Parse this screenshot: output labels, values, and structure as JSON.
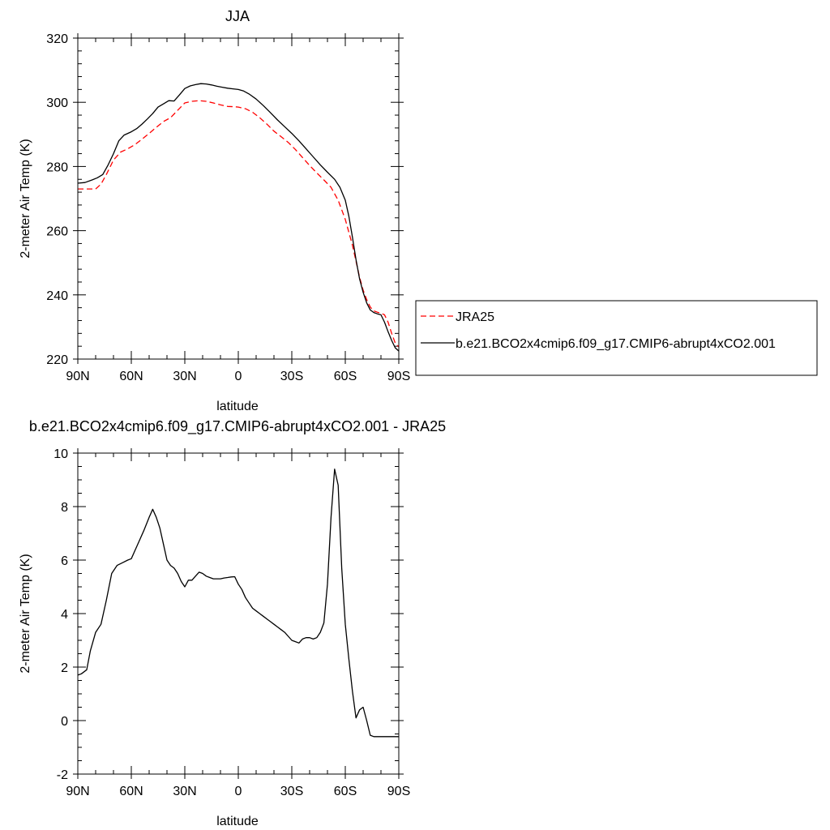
{
  "chart_data": [
    {
      "type": "line",
      "title": "JJA",
      "xlabel": "latitude",
      "ylabel": "2-meter Air Temp (K)",
      "xlim": [
        90,
        -90
      ],
      "ylim": [
        220,
        320
      ],
      "x_ticks": [
        90,
        60,
        30,
        0,
        -30,
        -60,
        -90
      ],
      "x_tick_labels": [
        "90N",
        "60N",
        "30N",
        "0",
        "30S",
        "60S",
        "90S"
      ],
      "y_ticks": [
        220,
        240,
        260,
        280,
        300,
        320
      ],
      "y_tick_labels": [
        "220",
        "240",
        "260",
        "280",
        "300",
        "320"
      ],
      "legend": {
        "placement": "right",
        "entries": [
          "JRA25",
          "b.e21.BCO2x4cmip6.f09_g17.CMIP6-abrupt4xCO2.001"
        ]
      },
      "series": [
        {
          "name": "JRA25",
          "color": "#ff0000",
          "dash": "dashed",
          "x": [
            90,
            85,
            80,
            77,
            74,
            70,
            66,
            62,
            58,
            54,
            50,
            46,
            42,
            38,
            34,
            30,
            26,
            22,
            18,
            14,
            10,
            6,
            2,
            0,
            -4,
            -8,
            -12,
            -16,
            -20,
            -24,
            -28,
            -32,
            -36,
            -40,
            -44,
            -48,
            -52,
            -56,
            -60,
            -62,
            -64,
            -66,
            -68,
            -70,
            -72,
            -74,
            -76,
            -78,
            -80,
            -82,
            -84,
            -86,
            -88,
            -90
          ],
          "values": [
            273,
            273,
            273,
            274.5,
            277.5,
            282,
            284.5,
            285.5,
            286.8,
            288.5,
            290.3,
            292.2,
            294,
            295.2,
            297.5,
            299.8,
            300.3,
            300.5,
            300.3,
            299.8,
            299.2,
            298.7,
            298.6,
            298.5,
            298,
            296.9,
            295.2,
            293.2,
            291,
            289.3,
            287.5,
            285.3,
            282.8,
            280.3,
            278,
            275.8,
            273.5,
            269.5,
            263.5,
            259.5,
            255.5,
            250.5,
            245.5,
            241.5,
            238.5,
            236.2,
            235,
            234.6,
            234.3,
            233.8,
            231.5,
            228,
            225,
            223.8
          ]
        },
        {
          "name": "b.e21.BCO2x4cmip6.f09_g17.CMIP6-abrupt4xCO2.001",
          "color": "#000000",
          "dash": "solid",
          "x": [
            90,
            86,
            82,
            79,
            76,
            73,
            70,
            67,
            64,
            60,
            57,
            54,
            51,
            48,
            45,
            42,
            39,
            36,
            33,
            30,
            27,
            24,
            21,
            18,
            15,
            12,
            9,
            6,
            3,
            0,
            -3,
            -6,
            -10,
            -14,
            -18,
            -22,
            -26,
            -30,
            -34,
            -38,
            -42,
            -46,
            -50,
            -54,
            -57,
            -60,
            -62,
            -64,
            -66,
            -68,
            -70,
            -72,
            -74,
            -76,
            -78,
            -80,
            -82,
            -84,
            -86,
            -88,
            -90
          ],
          "values": [
            274.8,
            275,
            275.8,
            276.5,
            277.5,
            280.5,
            284,
            288,
            289.8,
            290.8,
            291.8,
            293.2,
            294.8,
            296.5,
            298.5,
            299.5,
            300.5,
            300.4,
            302.3,
            304.3,
            305.1,
            305.5,
            305.8,
            305.7,
            305.4,
            305,
            304.7,
            304.4,
            304.2,
            304,
            303.5,
            302.6,
            301,
            299,
            296.8,
            294.5,
            292.4,
            290.3,
            288,
            285.5,
            283,
            280.5,
            278.2,
            276,
            273.5,
            269.5,
            264.5,
            258,
            251,
            245,
            240.8,
            237.5,
            235.3,
            234.5,
            234.1,
            233.8,
            231.5,
            228.5,
            225.8,
            223.5,
            222.5
          ]
        }
      ]
    },
    {
      "type": "line",
      "title": "b.e21.BCO2x4cmip6.f09_g17.CMIP6-abrupt4xCO2.001 - JRA25",
      "xlabel": "latitude",
      "ylabel": "2-meter Air Temp (K)",
      "xlim": [
        90,
        -90
      ],
      "ylim": [
        -2,
        10
      ],
      "x_ticks": [
        90,
        60,
        30,
        0,
        -30,
        -60,
        -90
      ],
      "x_tick_labels": [
        "90N",
        "60N",
        "30N",
        "0",
        "30S",
        "60S",
        "90S"
      ],
      "y_ticks": [
        -2,
        0,
        2,
        4,
        6,
        8,
        10
      ],
      "y_tick_labels": [
        "-2",
        "0",
        "2",
        "4",
        "6",
        "8",
        "10"
      ],
      "series": [
        {
          "color": "#000000",
          "dash": "solid",
          "x": [
            90,
            88,
            85,
            83,
            80,
            77,
            74,
            71,
            68,
            65,
            62,
            60,
            57,
            55,
            53,
            50,
            48,
            46,
            44,
            42,
            40,
            38,
            36,
            34,
            32,
            30,
            28,
            26,
            24,
            22,
            20,
            18,
            16,
            14,
            12,
            10,
            8,
            6,
            4,
            2,
            0,
            -2,
            -4,
            -6,
            -8,
            -10,
            -12,
            -14,
            -16,
            -18,
            -20,
            -22,
            -24,
            -26,
            -28,
            -30,
            -32,
            -34,
            -36,
            -38,
            -40,
            -42,
            -44,
            -46,
            -48,
            -50,
            -52,
            -54,
            -56,
            -58,
            -60,
            -62,
            -64,
            -66,
            -68,
            -70,
            -72,
            -74,
            -76,
            -78,
            -80,
            -82,
            -84,
            -86,
            -88,
            -90
          ],
          "values": [
            1.7,
            1.75,
            1.9,
            2.6,
            3.3,
            3.6,
            4.5,
            5.5,
            5.8,
            5.9,
            6.0,
            6.05,
            6.5,
            6.8,
            7.1,
            7.6,
            7.9,
            7.6,
            7.2,
            6.6,
            6.0,
            5.8,
            5.7,
            5.5,
            5.2,
            5.0,
            5.25,
            5.25,
            5.4,
            5.55,
            5.5,
            5.4,
            5.35,
            5.3,
            5.3,
            5.3,
            5.33,
            5.35,
            5.37,
            5.38,
            5.1,
            4.9,
            4.6,
            4.4,
            4.2,
            4.1,
            4.0,
            3.9,
            3.8,
            3.7,
            3.6,
            3.5,
            3.4,
            3.3,
            3.15,
            3.0,
            2.95,
            2.9,
            3.05,
            3.1,
            3.1,
            3.05,
            3.1,
            3.3,
            3.65,
            5.1,
            7.6,
            9.4,
            8.8,
            5.7,
            3.6,
            2.3,
            1.1,
            0.1,
            0.4,
            0.5,
            0.0,
            -0.55,
            -0.6,
            -0.6,
            -0.6,
            -0.6,
            -0.6,
            -0.6,
            -0.6,
            -0.6
          ]
        }
      ]
    }
  ]
}
